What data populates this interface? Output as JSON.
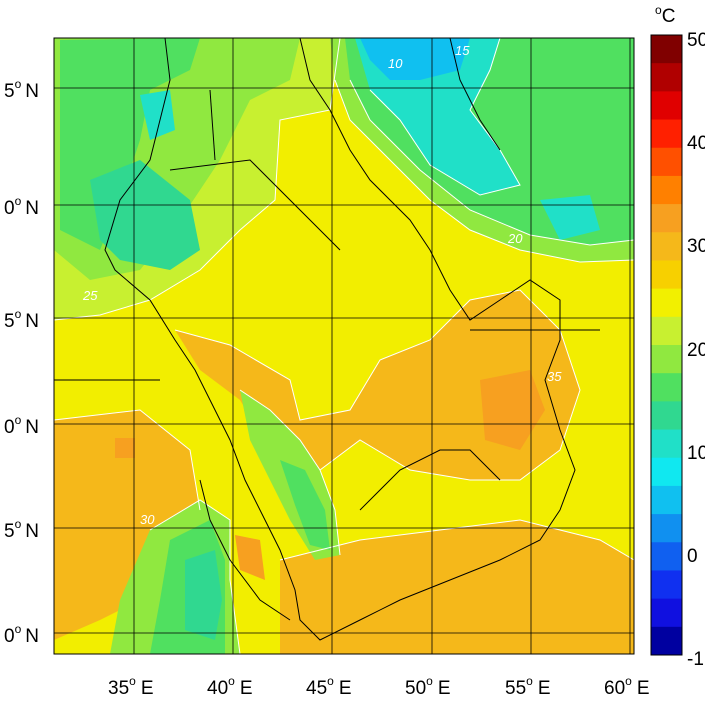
{
  "map": {
    "lon_ticks": [
      {
        "value": 35,
        "deg": "o",
        "label": "E"
      },
      {
        "value": 40,
        "deg": "o",
        "label": "E"
      },
      {
        "value": 45,
        "deg": "o",
        "label": "E"
      },
      {
        "value": 50,
        "deg": "o",
        "label": "E"
      },
      {
        "value": 55,
        "deg": "o",
        "label": "E"
      },
      {
        "value": 60,
        "deg": "o",
        "label": "E"
      }
    ],
    "lat_ticks": [
      {
        "text": "5",
        "deg": "o",
        "label": "N"
      },
      {
        "text": "0",
        "deg": "o",
        "label": "N"
      },
      {
        "text": "5",
        "deg": "o",
        "label": "N"
      },
      {
        "text": "0",
        "deg": "o",
        "label": "N"
      },
      {
        "text": "5",
        "deg": "o",
        "label": "N"
      },
      {
        "text": "0",
        "deg": "o",
        "label": "N"
      }
    ],
    "contour_labels": [
      "10",
      "15",
      "20",
      "25",
      "30",
      "35"
    ]
  },
  "colorbar": {
    "unit_deg": "o",
    "unit": "C",
    "labels": [
      "50",
      "40",
      "30",
      "20",
      "10",
      "0",
      "-1"
    ],
    "colors": [
      "#800000",
      "#b00000",
      "#e00000",
      "#ff2000",
      "#ff5000",
      "#ff8000",
      "#f7a020",
      "#f5b81a",
      "#f7d000",
      "#f2f000",
      "#c8f030",
      "#90e840",
      "#50e060",
      "#30d890",
      "#20e0c8",
      "#10e8f0",
      "#10c0f0",
      "#1090f0",
      "#1060f0",
      "#1030f0",
      "#1010e0",
      "#0000a0"
    ]
  }
}
